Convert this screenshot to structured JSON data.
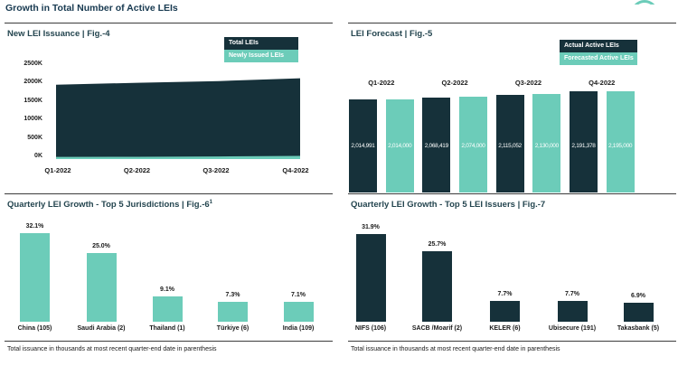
{
  "page": {
    "title": "Growth in Total Number of Active LEIs"
  },
  "colors": {
    "dark": "#16313a",
    "teal": "#6cccb9",
    "title": "#173950"
  },
  "chart_data": [
    {
      "id": "fig4",
      "type": "area",
      "title": "New LEI Issuance | Fig.-4",
      "categories": [
        "Q1-2022",
        "Q2-2022",
        "Q3-2022",
        "Q4-2022"
      ],
      "series": [
        {
          "name": "Total LEIs",
          "color_key": "dark",
          "values": [
            2014991,
            2068419,
            2115052,
            2191378
          ]
        },
        {
          "name": "Newly Issued LEIs",
          "color_key": "teal",
          "values": [
            60000,
            62000,
            70000,
            85000
          ]
        }
      ],
      "ylim": [
        0,
        2500000
      ],
      "ytick_labels": [
        "2500K",
        "2000K",
        "1500K",
        "1000K",
        "500K",
        "0K"
      ],
      "grid": false,
      "legend_position": "top-right"
    },
    {
      "id": "fig5",
      "type": "bar",
      "title": "LEI Forecast | Fig.-5",
      "categories": [
        "Q1-2022",
        "Q2-2022",
        "Q3-2022",
        "Q4-2022"
      ],
      "series": [
        {
          "name": "Actual Active LEIs",
          "color_key": "dark",
          "values": [
            2014991,
            2068419,
            2115052,
            2191378
          ],
          "labels": [
            "2,014,991",
            "2,068,419",
            "2,115,052",
            "2,191,378"
          ]
        },
        {
          "name": "Forecasted Active LEIs",
          "color_key": "teal",
          "values": [
            2014000,
            2074000,
            2130000,
            2195000
          ],
          "labels": [
            "2,014,000",
            "2,074,000",
            "2,130,000",
            "2,195,000"
          ]
        }
      ],
      "legend_position": "top-right"
    },
    {
      "id": "fig6",
      "type": "bar",
      "title": "Quarterly LEI Growth - Top 5 Jurisdictions | Fig.-6",
      "title_superscript": "1",
      "categories": [
        "China (105)",
        "Saudi Arabia (2)",
        "Thailand (1)",
        "Türkiye (6)",
        "India (109)"
      ],
      "values": [
        32.1,
        25.0,
        9.1,
        7.3,
        7.1
      ],
      "labels": [
        "32.1%",
        "25.0%",
        "9.1%",
        "7.3%",
        "7.1%"
      ],
      "bar_color_key": "teal",
      "footnote": "Total issuance in thousands at most recent quarter-end date in parenthesis"
    },
    {
      "id": "fig7",
      "type": "bar",
      "title": "Quarterly LEI Growth - Top 5 LEI Issuers | Fig.-7",
      "categories": [
        "NIFS (106)",
        "SACB /Moarif (2)",
        "KELER (6)",
        "Ubisecure (191)",
        "Takasbank (5)"
      ],
      "values": [
        31.9,
        25.7,
        7.7,
        7.7,
        6.9
      ],
      "labels": [
        "31.9%",
        "25.7%",
        "7.7%",
        "7.7%",
        "6.9%"
      ],
      "bar_color_key": "dark",
      "footnote": "Total issuance in thousands at most recent quarter-end date in parenthesis"
    }
  ]
}
